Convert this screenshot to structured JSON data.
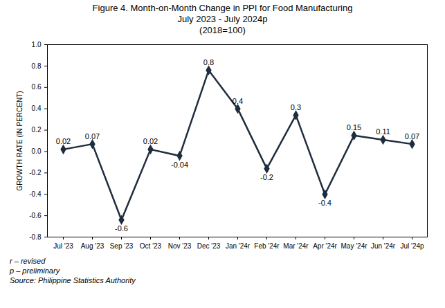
{
  "chart_data": {
    "type": "line",
    "title": "Figure 4. Month-on-Month Change in PPI for Food Manufacturing",
    "subtitle": [
      "July 2023 - July 2024p",
      "(2018=100)"
    ],
    "y_label": "GROWTH RATE (IN PERCENT)",
    "categories": [
      "Jul '23",
      "Aug '23",
      "Sep '23",
      "Oct '23",
      "Nov '23",
      "Dec '23",
      "Jan '24r",
      "Feb '24r",
      "Mar '24r",
      "Apr '24r",
      "May '24r",
      "Jun '24r",
      "Jul '24p"
    ],
    "values": [
      0.02,
      0.07,
      -0.64,
      0.02,
      -0.04,
      0.76,
      0.4,
      -0.16,
      0.34,
      -0.4,
      0.15,
      0.11,
      0.07
    ],
    "value_labels": [
      "0.02",
      "0.07",
      "-0.6",
      "0.02",
      "-0.04",
      "0.8",
      "0.4",
      "-0.2",
      "0.3",
      "-0.4",
      "0.15",
      "0.11",
      "0.07"
    ],
    "color": "#1f2d3d",
    "marker": "diamond",
    "line_style": "solid",
    "data_labels": true,
    "grid": false,
    "ylim": [
      -0.8,
      1.0
    ],
    "yticks": [
      -0.8,
      -0.6,
      -0.4,
      -0.2,
      {
        "value": 0,
        "label": "0.0"
      },
      0.2,
      0.4,
      0.6,
      0.8,
      {
        "value": 1.0,
        "label": "1.0"
      }
    ],
    "notes": [
      "r – revised",
      "p – preliminary",
      "Source: Philippine Statistics Authority"
    ]
  }
}
